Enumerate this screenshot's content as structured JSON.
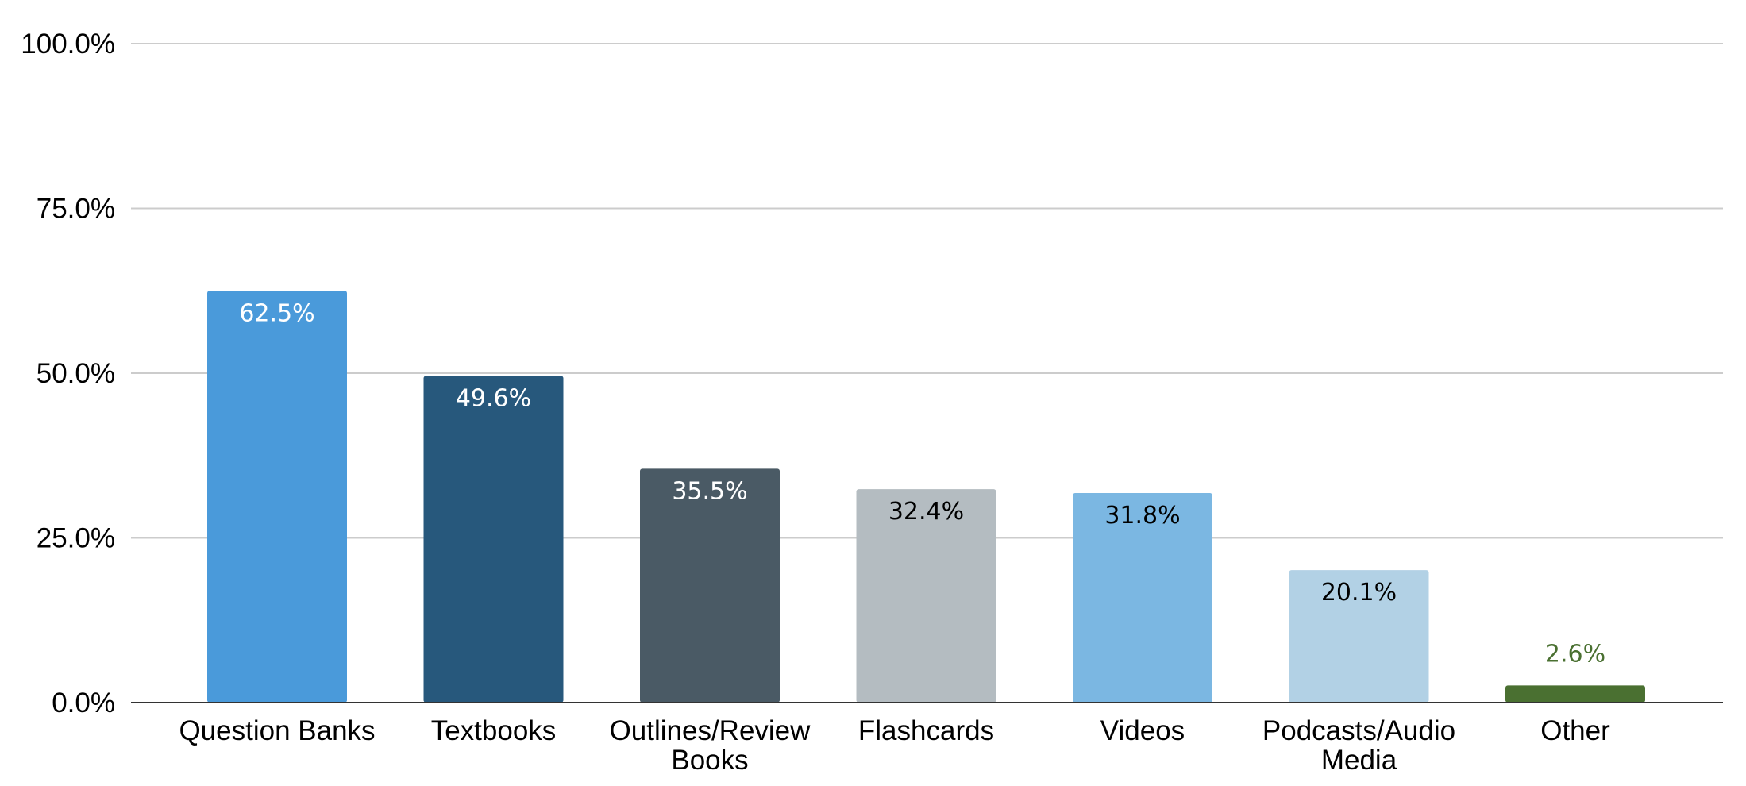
{
  "chart_data": {
    "type": "bar",
    "title": "",
    "xlabel": "",
    "ylabel": "",
    "ylim": [
      0,
      100
    ],
    "y_ticks": [
      0,
      25,
      50,
      75,
      100
    ],
    "y_tick_labels": [
      "0.0%",
      "25.0%",
      "50.0%",
      "75.0%",
      "100.0%"
    ],
    "grid": true,
    "legend": "none",
    "categories": [
      "Question Banks",
      "Textbooks",
      "Outlines/Review Books",
      "Flashcards",
      "Videos",
      "Podcasts/Audio Media",
      "Other"
    ],
    "category_lines": [
      [
        "Question Banks"
      ],
      [
        "Textbooks"
      ],
      [
        "Outlines/Review",
        "Books"
      ],
      [
        "Flashcards"
      ],
      [
        "Videos"
      ],
      [
        "Podcasts/Audio",
        "Media"
      ],
      [
        "Other"
      ]
    ],
    "values": [
      62.5,
      49.6,
      35.5,
      32.4,
      31.8,
      20.1,
      2.6
    ],
    "value_labels": [
      "62.5%",
      "49.6%",
      "35.5%",
      "32.4%",
      "31.8%",
      "20.1%",
      "2.6%"
    ],
    "colors": [
      "#4a9ada",
      "#27587c",
      "#4a5a65",
      "#b4bcc1",
      "#7bb7e2",
      "#b2d1e5",
      "#4a7031"
    ],
    "label_colors": [
      "#ffffff",
      "#ffffff",
      "#ffffff",
      "#000000",
      "#000000",
      "#000000",
      "#4a7031"
    ]
  }
}
